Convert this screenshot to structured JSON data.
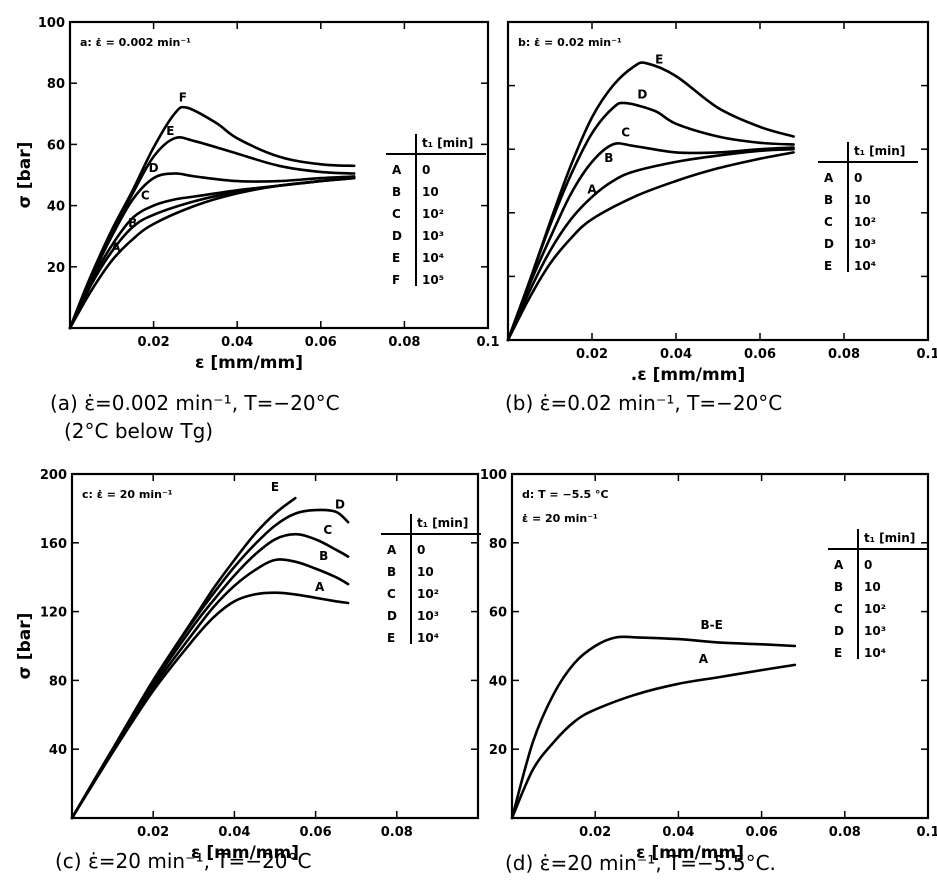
{
  "chart_data": [
    {
      "type": "line",
      "panel": "a",
      "corner_text": "a: ε̇ = 0.002 min⁻¹",
      "xlabel": "ε [mm/mm]",
      "ylabel": "σ [bar]",
      "xlim": [
        0,
        0.1
      ],
      "ylim": [
        0,
        100
      ],
      "x_ticks": [
        0.02,
        0.04,
        0.06,
        0.08,
        0.1
      ],
      "x_tick_labels": [
        "0.02",
        "0.04",
        "0.06",
        "0.08",
        "0.1"
      ],
      "y_ticks": [
        20,
        40,
        60,
        80,
        100
      ],
      "y_tick_labels": [
        "20",
        "40",
        "60",
        "80",
        "100"
      ],
      "caption_lines": [
        "(a) ε̇=0.002 min⁻¹, T=−20°C",
        "(2°C below Tg)"
      ],
      "table": {
        "header": "t₁ [min]",
        "rows": [
          [
            "A",
            "0"
          ],
          [
            "B",
            "10"
          ],
          [
            "C",
            "10²"
          ],
          [
            "D",
            "10³"
          ],
          [
            "E",
            "10⁴"
          ],
          [
            "F",
            "10⁵"
          ]
        ]
      },
      "series": [
        {
          "name": "A",
          "label_at": [
            0.011,
            25
          ],
          "x": [
            0,
            0.005,
            0.01,
            0.015,
            0.02,
            0.03,
            0.04,
            0.05,
            0.06,
            0.068
          ],
          "y": [
            0,
            12,
            22,
            29,
            34,
            40,
            44,
            46.5,
            48,
            49
          ]
        },
        {
          "name": "B",
          "label_at": [
            0.015,
            33
          ],
          "x": [
            0,
            0.005,
            0.01,
            0.015,
            0.02,
            0.03,
            0.04,
            0.05,
            0.06,
            0.068
          ],
          "y": [
            0,
            14,
            25,
            33,
            37,
            41.5,
            44.5,
            46.5,
            48,
            49
          ]
        },
        {
          "name": "C",
          "label_at": [
            0.018,
            42
          ],
          "x": [
            0,
            0.005,
            0.01,
            0.015,
            0.02,
            0.025,
            0.03,
            0.04,
            0.05,
            0.06,
            0.068
          ],
          "y": [
            0,
            15,
            27,
            36,
            40,
            42,
            43,
            45,
            46.5,
            48,
            49.5
          ]
        },
        {
          "name": "D",
          "label_at": [
            0.02,
            51
          ],
          "x": [
            0,
            0.005,
            0.01,
            0.015,
            0.02,
            0.025,
            0.03,
            0.04,
            0.05,
            0.06,
            0.068
          ],
          "y": [
            0,
            16,
            30,
            42,
            49,
            50.5,
            49.5,
            48,
            48,
            49,
            49.5
          ]
        },
        {
          "name": "E",
          "label_at": [
            0.024,
            63
          ],
          "x": [
            0,
            0.005,
            0.01,
            0.015,
            0.02,
            0.025,
            0.03,
            0.04,
            0.05,
            0.06,
            0.068
          ],
          "y": [
            0,
            17,
            31,
            44,
            56,
            62,
            61,
            57,
            53,
            51,
            50.5
          ]
        },
        {
          "name": "F",
          "label_at": [
            0.027,
            74
          ],
          "x": [
            0,
            0.005,
            0.01,
            0.015,
            0.02,
            0.025,
            0.028,
            0.035,
            0.04,
            0.05,
            0.06,
            0.068
          ],
          "y": [
            0,
            17,
            32,
            45,
            59,
            70,
            72,
            67,
            62,
            56,
            53.5,
            53
          ]
        }
      ]
    },
    {
      "type": "line",
      "panel": "b",
      "corner_text": "b: ε̇ = 0.02 min⁻¹",
      "xlabel": ".ε [mm/mm]",
      "ylabel": "",
      "xlim": [
        0,
        0.1
      ],
      "ylim": [
        0,
        100
      ],
      "x_ticks": [
        0.02,
        0.04,
        0.06,
        0.08,
        0.1
      ],
      "x_tick_labels": [
        "0.02",
        "0.04",
        "0.06",
        "0.08",
        "0.1"
      ],
      "y_ticks": [
        20,
        40,
        60,
        80,
        100
      ],
      "y_tick_labels": [],
      "caption_lines": [
        "(b) ε̇=0.02 min⁻¹, T=−20°C"
      ],
      "table": {
        "header": "t₁ [min]",
        "rows": [
          [
            "A",
            "0"
          ],
          [
            "B",
            "10"
          ],
          [
            "C",
            "10²"
          ],
          [
            "D",
            "10³"
          ],
          [
            "E",
            "10⁴"
          ]
        ]
      },
      "series": [
        {
          "name": "A",
          "label_at": [
            0.02,
            46
          ],
          "x": [
            0,
            0.005,
            0.01,
            0.015,
            0.02,
            0.03,
            0.04,
            0.05,
            0.06,
            0.068
          ],
          "y": [
            0,
            13,
            24,
            32,
            38,
            45,
            50,
            54,
            57,
            59
          ]
        },
        {
          "name": "B",
          "label_at": [
            0.024,
            56
          ],
          "x": [
            0,
            0.005,
            0.01,
            0.015,
            0.02,
            0.025,
            0.03,
            0.04,
            0.05,
            0.06,
            0.068
          ],
          "y": [
            0,
            15,
            28,
            38,
            45,
            50,
            53,
            56,
            58,
            59.5,
            60
          ]
        },
        {
          "name": "C",
          "label_at": [
            0.028,
            64
          ],
          "x": [
            0,
            0.005,
            0.01,
            0.015,
            0.02,
            0.025,
            0.03,
            0.04,
            0.05,
            0.06,
            0.068
          ],
          "y": [
            0,
            17,
            32,
            46,
            56,
            61.5,
            61,
            59,
            59,
            60,
            60.5
          ]
        },
        {
          "name": "D",
          "label_at": [
            0.032,
            76
          ],
          "x": [
            0,
            0.005,
            0.01,
            0.015,
            0.02,
            0.025,
            0.028,
            0.035,
            0.04,
            0.05,
            0.06,
            0.068
          ],
          "y": [
            0,
            18,
            36,
            52,
            65,
            73,
            74.5,
            72,
            68,
            64,
            62,
            61.5
          ]
        },
        {
          "name": "E",
          "label_at": [
            0.036,
            87
          ],
          "x": [
            0,
            0.005,
            0.01,
            0.015,
            0.02,
            0.025,
            0.03,
            0.033,
            0.04,
            0.05,
            0.06,
            0.068
          ],
          "y": [
            0,
            18,
            37,
            55,
            70,
            80,
            86,
            87,
            83,
            73,
            67,
            64
          ]
        }
      ]
    },
    {
      "type": "line",
      "panel": "c",
      "corner_text": "c: ε̇ = 20 min⁻¹",
      "xlabel": "ε [mm/mm]",
      "ylabel": "σ [bar]",
      "xlim": [
        0,
        0.1
      ],
      "ylim": [
        0,
        200
      ],
      "x_ticks": [
        0.02,
        0.04,
        0.06,
        0.08
      ],
      "x_tick_labels": [
        "0.02",
        "0.04",
        "0.06",
        "0.08"
      ],
      "y_ticks": [
        40,
        80,
        120,
        160,
        200
      ],
      "y_tick_labels": [
        "40",
        "80",
        "120",
        "160",
        "200"
      ],
      "caption_lines": [
        "(c) ε̇=20 min⁻¹, T=−20°C"
      ],
      "table": {
        "header": "t₁ [min]",
        "rows": [
          [
            "A",
            "0"
          ],
          [
            "B",
            "10"
          ],
          [
            "C",
            "10²"
          ],
          [
            "D",
            "10³"
          ],
          [
            "E",
            "10⁴"
          ]
        ]
      },
      "series": [
        {
          "name": "A",
          "label_at": [
            0.061,
            132
          ],
          "x": [
            0,
            0.01,
            0.02,
            0.03,
            0.035,
            0.04,
            0.045,
            0.05,
            0.055,
            0.06,
            0.065,
            0.068
          ],
          "y": [
            0,
            38,
            74,
            104,
            117,
            126,
            130,
            131,
            130,
            128,
            126,
            125
          ]
        },
        {
          "name": "B",
          "label_at": [
            0.062,
            150
          ],
          "x": [
            0,
            0.01,
            0.02,
            0.03,
            0.035,
            0.04,
            0.045,
            0.05,
            0.055,
            0.06,
            0.065,
            0.068
          ],
          "y": [
            0,
            39,
            76,
            108,
            123,
            135,
            144,
            150,
            149,
            145,
            140,
            136
          ]
        },
        {
          "name": "C",
          "label_at": [
            0.063,
            165
          ],
          "x": [
            0,
            0.01,
            0.02,
            0.03,
            0.035,
            0.04,
            0.045,
            0.05,
            0.055,
            0.06,
            0.065,
            0.068
          ],
          "y": [
            0,
            40,
            78,
            112,
            127,
            141,
            153,
            162,
            165,
            162,
            156,
            152
          ]
        },
        {
          "name": "D",
          "label_at": [
            0.066,
            180
          ],
          "x": [
            0,
            0.01,
            0.02,
            0.03,
            0.035,
            0.04,
            0.045,
            0.05,
            0.055,
            0.06,
            0.065,
            0.068
          ],
          "y": [
            0,
            40,
            80,
            115,
            131,
            146,
            159,
            170,
            177,
            179,
            178,
            172
          ]
        },
        {
          "name": "E",
          "label_at": [
            0.05,
            190
          ],
          "x": [
            0,
            0.01,
            0.02,
            0.03,
            0.035,
            0.04,
            0.045,
            0.05,
            0.055
          ],
          "y": [
            0,
            40,
            80,
            116,
            134,
            150,
            165,
            177,
            186
          ]
        }
      ]
    },
    {
      "type": "line",
      "panel": "d",
      "corner_text": "d: T = −5.5 °C",
      "corner_text_2": "ε̇ = 20 min⁻¹",
      "xlabel": "ε [mm/mm]",
      "ylabel": "",
      "xlim": [
        0,
        0.1
      ],
      "ylim": [
        0,
        100
      ],
      "x_ticks": [
        0.02,
        0.04,
        0.06,
        0.08,
        0.1
      ],
      "x_tick_labels": [
        "0.02",
        "0.04",
        "0.06",
        "0.08",
        "0.1"
      ],
      "y_ticks": [
        20,
        40,
        60,
        80,
        100
      ],
      "y_tick_labels": [
        "20",
        "40",
        "60",
        "80",
        "100"
      ],
      "caption_lines": [
        "(d) ε̇=20 min⁻¹, T=−5.5°C."
      ],
      "table": {
        "header": "t₁ [min]",
        "rows": [
          [
            "A",
            "0"
          ],
          [
            "B",
            "10"
          ],
          [
            "C",
            "10²"
          ],
          [
            "D",
            "10³"
          ],
          [
            "E",
            "10⁴"
          ]
        ]
      },
      "series": [
        {
          "name": "A",
          "label_at": [
            0.046,
            45
          ],
          "x": [
            0,
            0.005,
            0.01,
            0.015,
            0.02,
            0.03,
            0.04,
            0.05,
            0.06,
            0.068
          ],
          "y": [
            0,
            14,
            22,
            28,
            31.5,
            36,
            39,
            41,
            43,
            44.5
          ]
        },
        {
          "name": "B-E",
          "label_at": [
            0.048,
            55
          ],
          "x": [
            0,
            0.005,
            0.01,
            0.015,
            0.02,
            0.025,
            0.03,
            0.04,
            0.05,
            0.06,
            0.068
          ],
          "y": [
            0,
            22,
            36,
            45,
            50,
            52.5,
            52.5,
            52,
            51,
            50.5,
            50
          ]
        }
      ]
    }
  ]
}
